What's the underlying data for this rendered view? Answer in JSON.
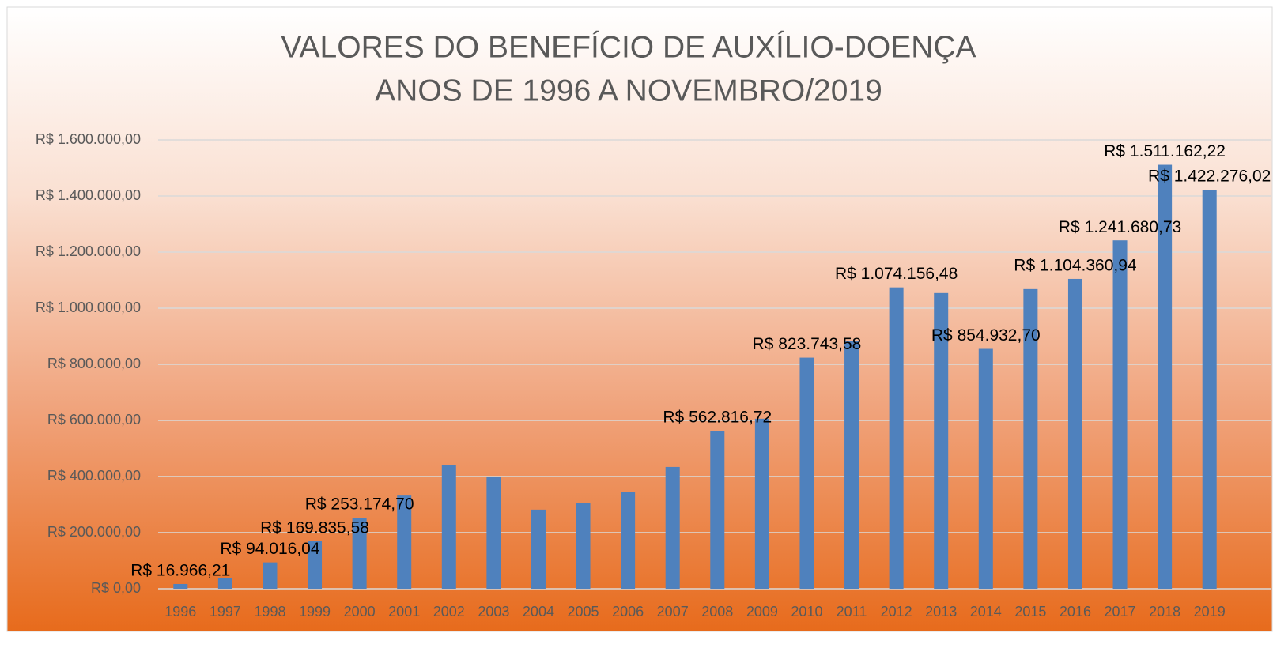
{
  "chart_data": {
    "type": "bar",
    "title": [
      "VALORES DO BENEFÍCIO DE AUXÍLIO-DOENÇA",
      "ANOS DE 1996 A NOVEMBRO/2019"
    ],
    "categories": [
      "1996",
      "1997",
      "1998",
      "1999",
      "2000",
      "2001",
      "2002",
      "2003",
      "2004",
      "2005",
      "2006",
      "2007",
      "2008",
      "2009",
      "2010",
      "2011",
      "2012",
      "2013",
      "2014",
      "2015",
      "2016",
      "2017",
      "2018",
      "2019"
    ],
    "values": [
      16966.21,
      37000,
      94016.04,
      169835.58,
      253174.7,
      332000,
      442000,
      400000,
      282000,
      307000,
      344000,
      434000,
      562816.72,
      606000,
      823743.58,
      882000,
      1074156.48,
      1054000,
      854932.7,
      1068000,
      1104360.94,
      1241680.73,
      1511162.22,
      1422276.02
    ],
    "value_labels": [
      "R$ 16.966,21",
      null,
      "R$ 94.016,04",
      "R$ 169.835,58",
      "R$ 253.174,70",
      null,
      null,
      null,
      null,
      null,
      null,
      null,
      "R$ 562.816,72",
      null,
      "R$ 823.743,58",
      null,
      "R$ 1.074.156,48",
      null,
      "R$ 854.932,70",
      null,
      "R$ 1.104.360,94",
      "R$ 1.241.680,73",
      "R$ 1.511.162,22",
      "R$ 1.422.276,02"
    ],
    "color": "#4f81bd",
    "ylim": [
      0,
      1600000
    ],
    "yticks": [
      {
        "value": 0,
        "label": "R$ 0,00"
      },
      {
        "value": 200000,
        "label": "R$ 200.000,00"
      },
      {
        "value": 400000,
        "label": "R$ 400.000,00"
      },
      {
        "value": 600000,
        "label": "R$ 600.000,00"
      },
      {
        "value": 800000,
        "label": "R$ 800.000,00"
      },
      {
        "value": 1000000,
        "label": "R$ 1.000.000,00"
      },
      {
        "value": 1200000,
        "label": "R$ 1.200.000,00"
      },
      {
        "value": 1400000,
        "label": "R$ 1.400.000,00"
      },
      {
        "value": 1600000,
        "label": "R$ 1.600.000,00"
      }
    ],
    "grid": true
  }
}
